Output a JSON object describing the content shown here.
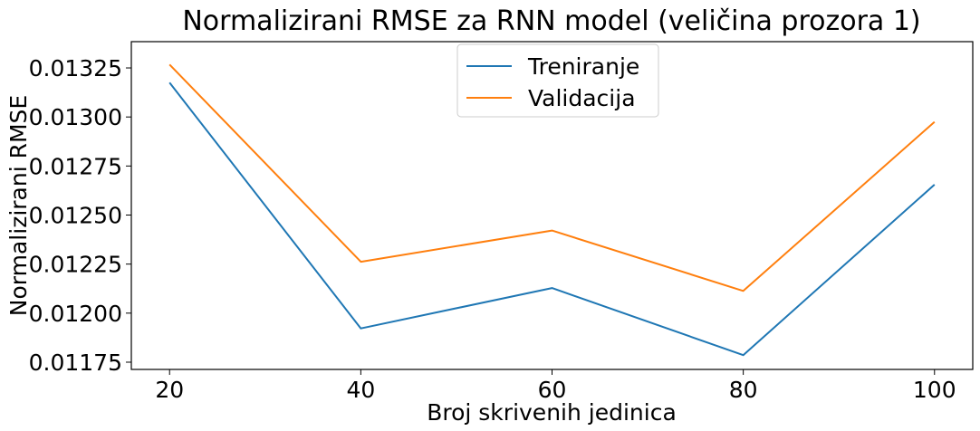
{
  "chart_data": {
    "type": "line",
    "title": "Normalizirani RMSE za RNN model (veličina prozora 1)",
    "xlabel": "Broj skrivenih jedinica",
    "ylabel": "Normalizirani RMSE",
    "x": [
      20,
      40,
      60,
      80,
      100
    ],
    "xticks": [
      "20",
      "40",
      "60",
      "80",
      "100"
    ],
    "yticks": [
      "0.01175",
      "0.01200",
      "0.01225",
      "0.01250",
      "0.01275",
      "0.01300",
      "0.01325"
    ],
    "ytick_values": [
      0.01175,
      0.012,
      0.01225,
      0.0125,
      0.01275,
      0.013,
      0.01325
    ],
    "xlim": [
      16,
      104
    ],
    "ylim": [
      0.011713,
      0.013384
    ],
    "grid": false,
    "legend_position": "top-center",
    "series": [
      {
        "name": "Treniranje",
        "color": "#1f77b4",
        "values": [
          0.013175,
          0.011922,
          0.012128,
          0.011786,
          0.012655
        ]
      },
      {
        "name": "Validacija",
        "color": "#ff7f0e",
        "values": [
          0.013267,
          0.012262,
          0.012421,
          0.012113,
          0.012975
        ]
      }
    ]
  }
}
